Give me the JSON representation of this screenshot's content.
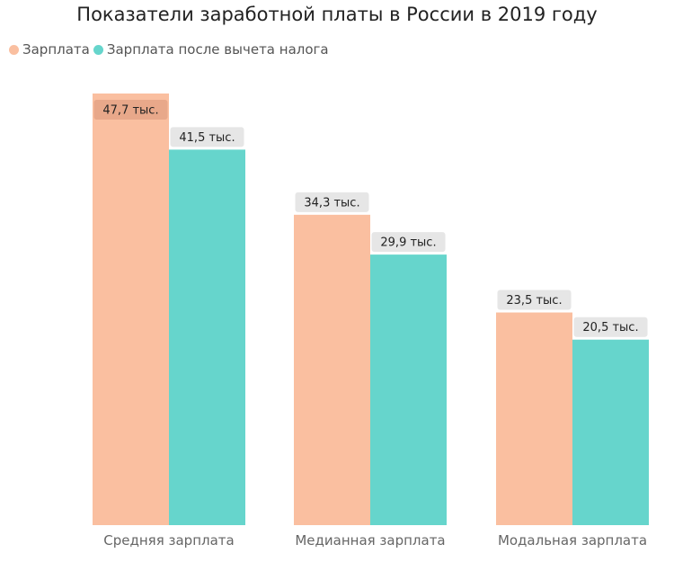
{
  "chart_data": {
    "type": "bar",
    "title": "Показатели заработной платы в России в 2019 году",
    "categories": [
      "Средняя зарплата",
      "Медианная зарплата",
      "Модальная зарплата"
    ],
    "series": [
      {
        "name": "Зарплата",
        "color": "#FABFA0",
        "values": [
          47.7,
          34.3,
          23.5
        ],
        "labels": [
          "47,7 тыс.",
          "34,3 тыс.",
          "23,5 тыс."
        ]
      },
      {
        "name": "Зарплата после вычета налога",
        "color": "#66D5CC",
        "values": [
          41.5,
          29.9,
          20.5
        ],
        "labels": [
          "41,5 тыс.",
          "29,9 тыс.",
          "20,5 тыс."
        ]
      }
    ],
    "ylim": [
      0,
      47.7
    ],
    "grid": false,
    "legend_position": "top-left",
    "label_style": {
      "default_background": "#E6E6E6",
      "inside_background": "#E8A88A"
    }
  }
}
